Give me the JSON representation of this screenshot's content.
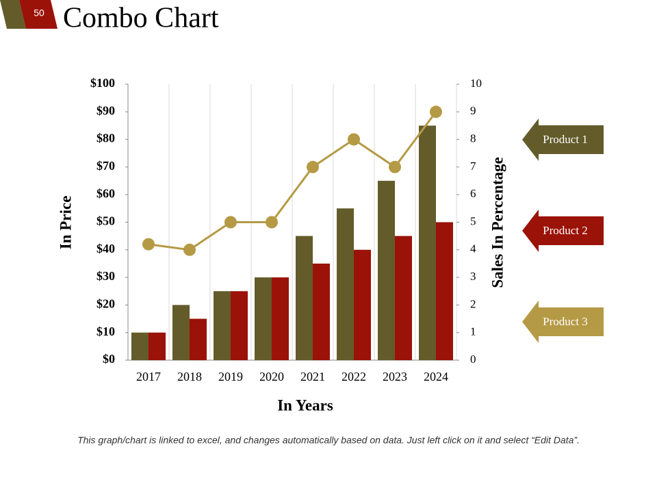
{
  "page_number": "50",
  "chart_data": {
    "type": "bar",
    "title": "Combo Chart",
    "x_label": "In Years",
    "y_label": "In Price",
    "y2_label": "Sales In Percentage",
    "categories": [
      "2017",
      "2018",
      "2019",
      "2020",
      "2021",
      "2022",
      "2023",
      "2024"
    ],
    "series": [
      {
        "name": "Product 1",
        "color": "#635b2a",
        "values": [
          10,
          20,
          25,
          30,
          45,
          55,
          65,
          85
        ]
      },
      {
        "name": "Product 2",
        "color": "#9b1208",
        "values": [
          10,
          15,
          25,
          30,
          35,
          40,
          45,
          50
        ]
      },
      {
        "name": "Product 3",
        "color": "#b59a45",
        "type": "line",
        "axis": "y2",
        "values": [
          4.2,
          4.0,
          5.0,
          5.0,
          7.0,
          8.0,
          7.0,
          9.0
        ]
      }
    ],
    "ylim": [
      0,
      100
    ],
    "yticks": [
      {
        "value": 0,
        "label": "$0"
      },
      {
        "value": 10,
        "label": "$10"
      },
      {
        "value": 20,
        "label": "$20"
      },
      {
        "value": 30,
        "label": "$30"
      },
      {
        "value": 40,
        "label": "$40"
      },
      {
        "value": 50,
        "label": "$50"
      },
      {
        "value": 60,
        "label": "$60"
      },
      {
        "value": 70,
        "label": "$70"
      },
      {
        "value": 80,
        "label": "$80"
      },
      {
        "value": 90,
        "label": "$90"
      },
      {
        "value": 100,
        "label": "$100"
      }
    ],
    "y2lim": [
      0,
      10
    ],
    "y2ticks": [
      0,
      1,
      2,
      3,
      4,
      5,
      6,
      7,
      8,
      9,
      10
    ],
    "grid": true,
    "note": "This graph/chart is linked to excel, and changes automatically based on data. Just left click on it and select “Edit Data”."
  }
}
